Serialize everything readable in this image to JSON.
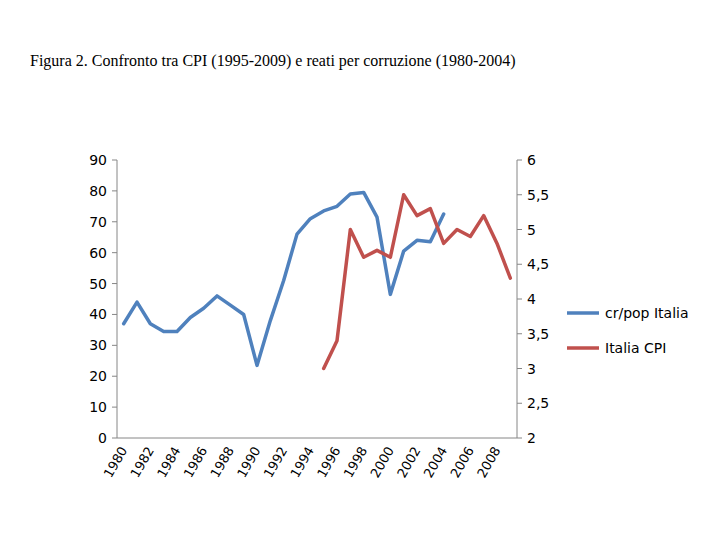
{
  "chart_data": {
    "type": "line",
    "title": "Figura 2.  Confronto tra CPI (1995-2009) e reati per corruzione (1980-2004)",
    "categories": [
      1980,
      null,
      1982,
      null,
      1984,
      null,
      1986,
      null,
      1988,
      null,
      1990,
      null,
      1992,
      null,
      1994,
      null,
      1996,
      null,
      1998,
      null,
      2000,
      null,
      2002,
      null,
      2004,
      null,
      2006,
      null,
      2008,
      null
    ],
    "series": [
      {
        "name": "cr/pop Italia",
        "color": "#4f81bd",
        "values": [
          37,
          44,
          37,
          34.5,
          34.5,
          39,
          42,
          46,
          43,
          40,
          23.5,
          38,
          51,
          66,
          71,
          73.5,
          75,
          79,
          79.5,
          71.5,
          46.5,
          60.5,
          64,
          63.5,
          72.5,
          null,
          null,
          null,
          null,
          null
        ]
      },
      {
        "name": "Italia CPI",
        "color": "#c0504d",
        "axis": "y2",
        "values": [
          null,
          null,
          null,
          null,
          null,
          null,
          null,
          null,
          null,
          null,
          null,
          null,
          null,
          null,
          null,
          3.0,
          3.4,
          5.0,
          4.6,
          4.7,
          4.6,
          5.5,
          5.2,
          5.3,
          4.8,
          5.0,
          4.9,
          5.2,
          4.8,
          4.3
        ]
      }
    ],
    "ylim": [
      0,
      90
    ],
    "yticks": [
      0,
      10,
      20,
      30,
      40,
      50,
      60,
      70,
      80,
      90
    ],
    "y2lim": [
      2,
      6
    ],
    "y2ticks": [
      2,
      {
        "value": 2.5,
        "label": "2,5"
      },
      3,
      {
        "value": 3.5,
        "label": "3,5"
      },
      4,
      {
        "value": 4.5,
        "label": "4,5"
      },
      5,
      {
        "value": 5.5,
        "label": "5,5"
      },
      6
    ],
    "grid": false,
    "legend": "right"
  }
}
